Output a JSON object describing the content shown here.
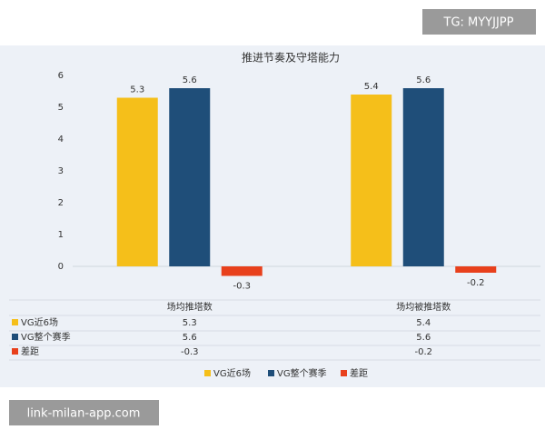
{
  "chart_data": {
    "type": "bar",
    "title": "推进节奏及守塔能力",
    "categories": [
      "场均推塔数",
      "场均被推塔数"
    ],
    "series": [
      {
        "name": "VG近6场",
        "color": "#f5bf1a",
        "values": [
          5.3,
          5.4
        ]
      },
      {
        "name": "VG整个赛季",
        "color": "#1f4e79",
        "values": [
          5.6,
          5.6
        ]
      },
      {
        "name": "差距",
        "color": "#e8401c",
        "values": [
          -0.3,
          -0.2
        ]
      }
    ],
    "ylim": [
      -1,
      6
    ],
    "yticks": [
      0,
      1,
      2,
      3,
      4,
      5,
      6
    ],
    "grid": false,
    "legend": "bottom"
  },
  "overlay": {
    "top_badge": "TG: MYYJJPP",
    "bottom_badge": "link-milan-app.com"
  }
}
